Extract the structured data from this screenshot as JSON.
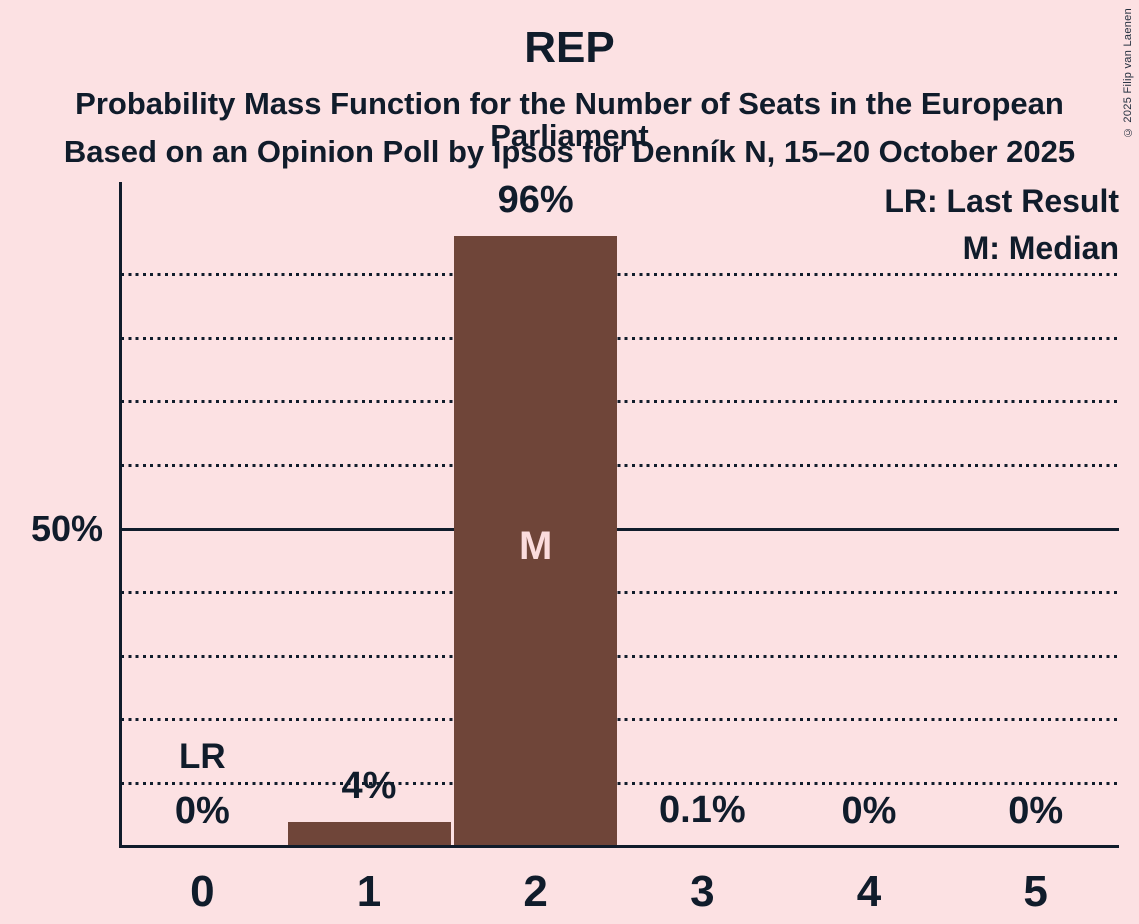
{
  "header": {
    "title": "REP",
    "subtitle1": "Probability Mass Function for the Number of Seats in the European Parliament",
    "subtitle2": "Based on an Opinion Poll by Ipsos for Denník N, 15–20 October 2025"
  },
  "copyright": "© 2025 Filip van Laenen",
  "legend": {
    "last_result": "LR: Last Result",
    "median": "M: Median"
  },
  "y_axis": {
    "label_50": "50%"
  },
  "colors": {
    "background": "#fce1e3",
    "bar": "#6f4539",
    "text": "#101c2b",
    "median_label": "#fbdcdd"
  },
  "chart_data": {
    "type": "bar",
    "title": "REP",
    "categories": [
      "0",
      "1",
      "2",
      "3",
      "4",
      "5"
    ],
    "values": [
      0,
      4,
      96,
      0.1,
      0,
      0
    ],
    "value_labels": [
      "0%",
      "4%",
      "96%",
      "0.1%",
      "0%",
      "0%"
    ],
    "ylim": [
      0,
      104.5
    ],
    "gridlines_percent": [
      10,
      20,
      30,
      40,
      50,
      60,
      70,
      80,
      90
    ],
    "solid_gridline_percent": 50,
    "grid": true,
    "legend_position": "top-right",
    "median_category": "2",
    "median_marker": "M",
    "last_result_category": "0",
    "last_result_marker": "LR"
  }
}
